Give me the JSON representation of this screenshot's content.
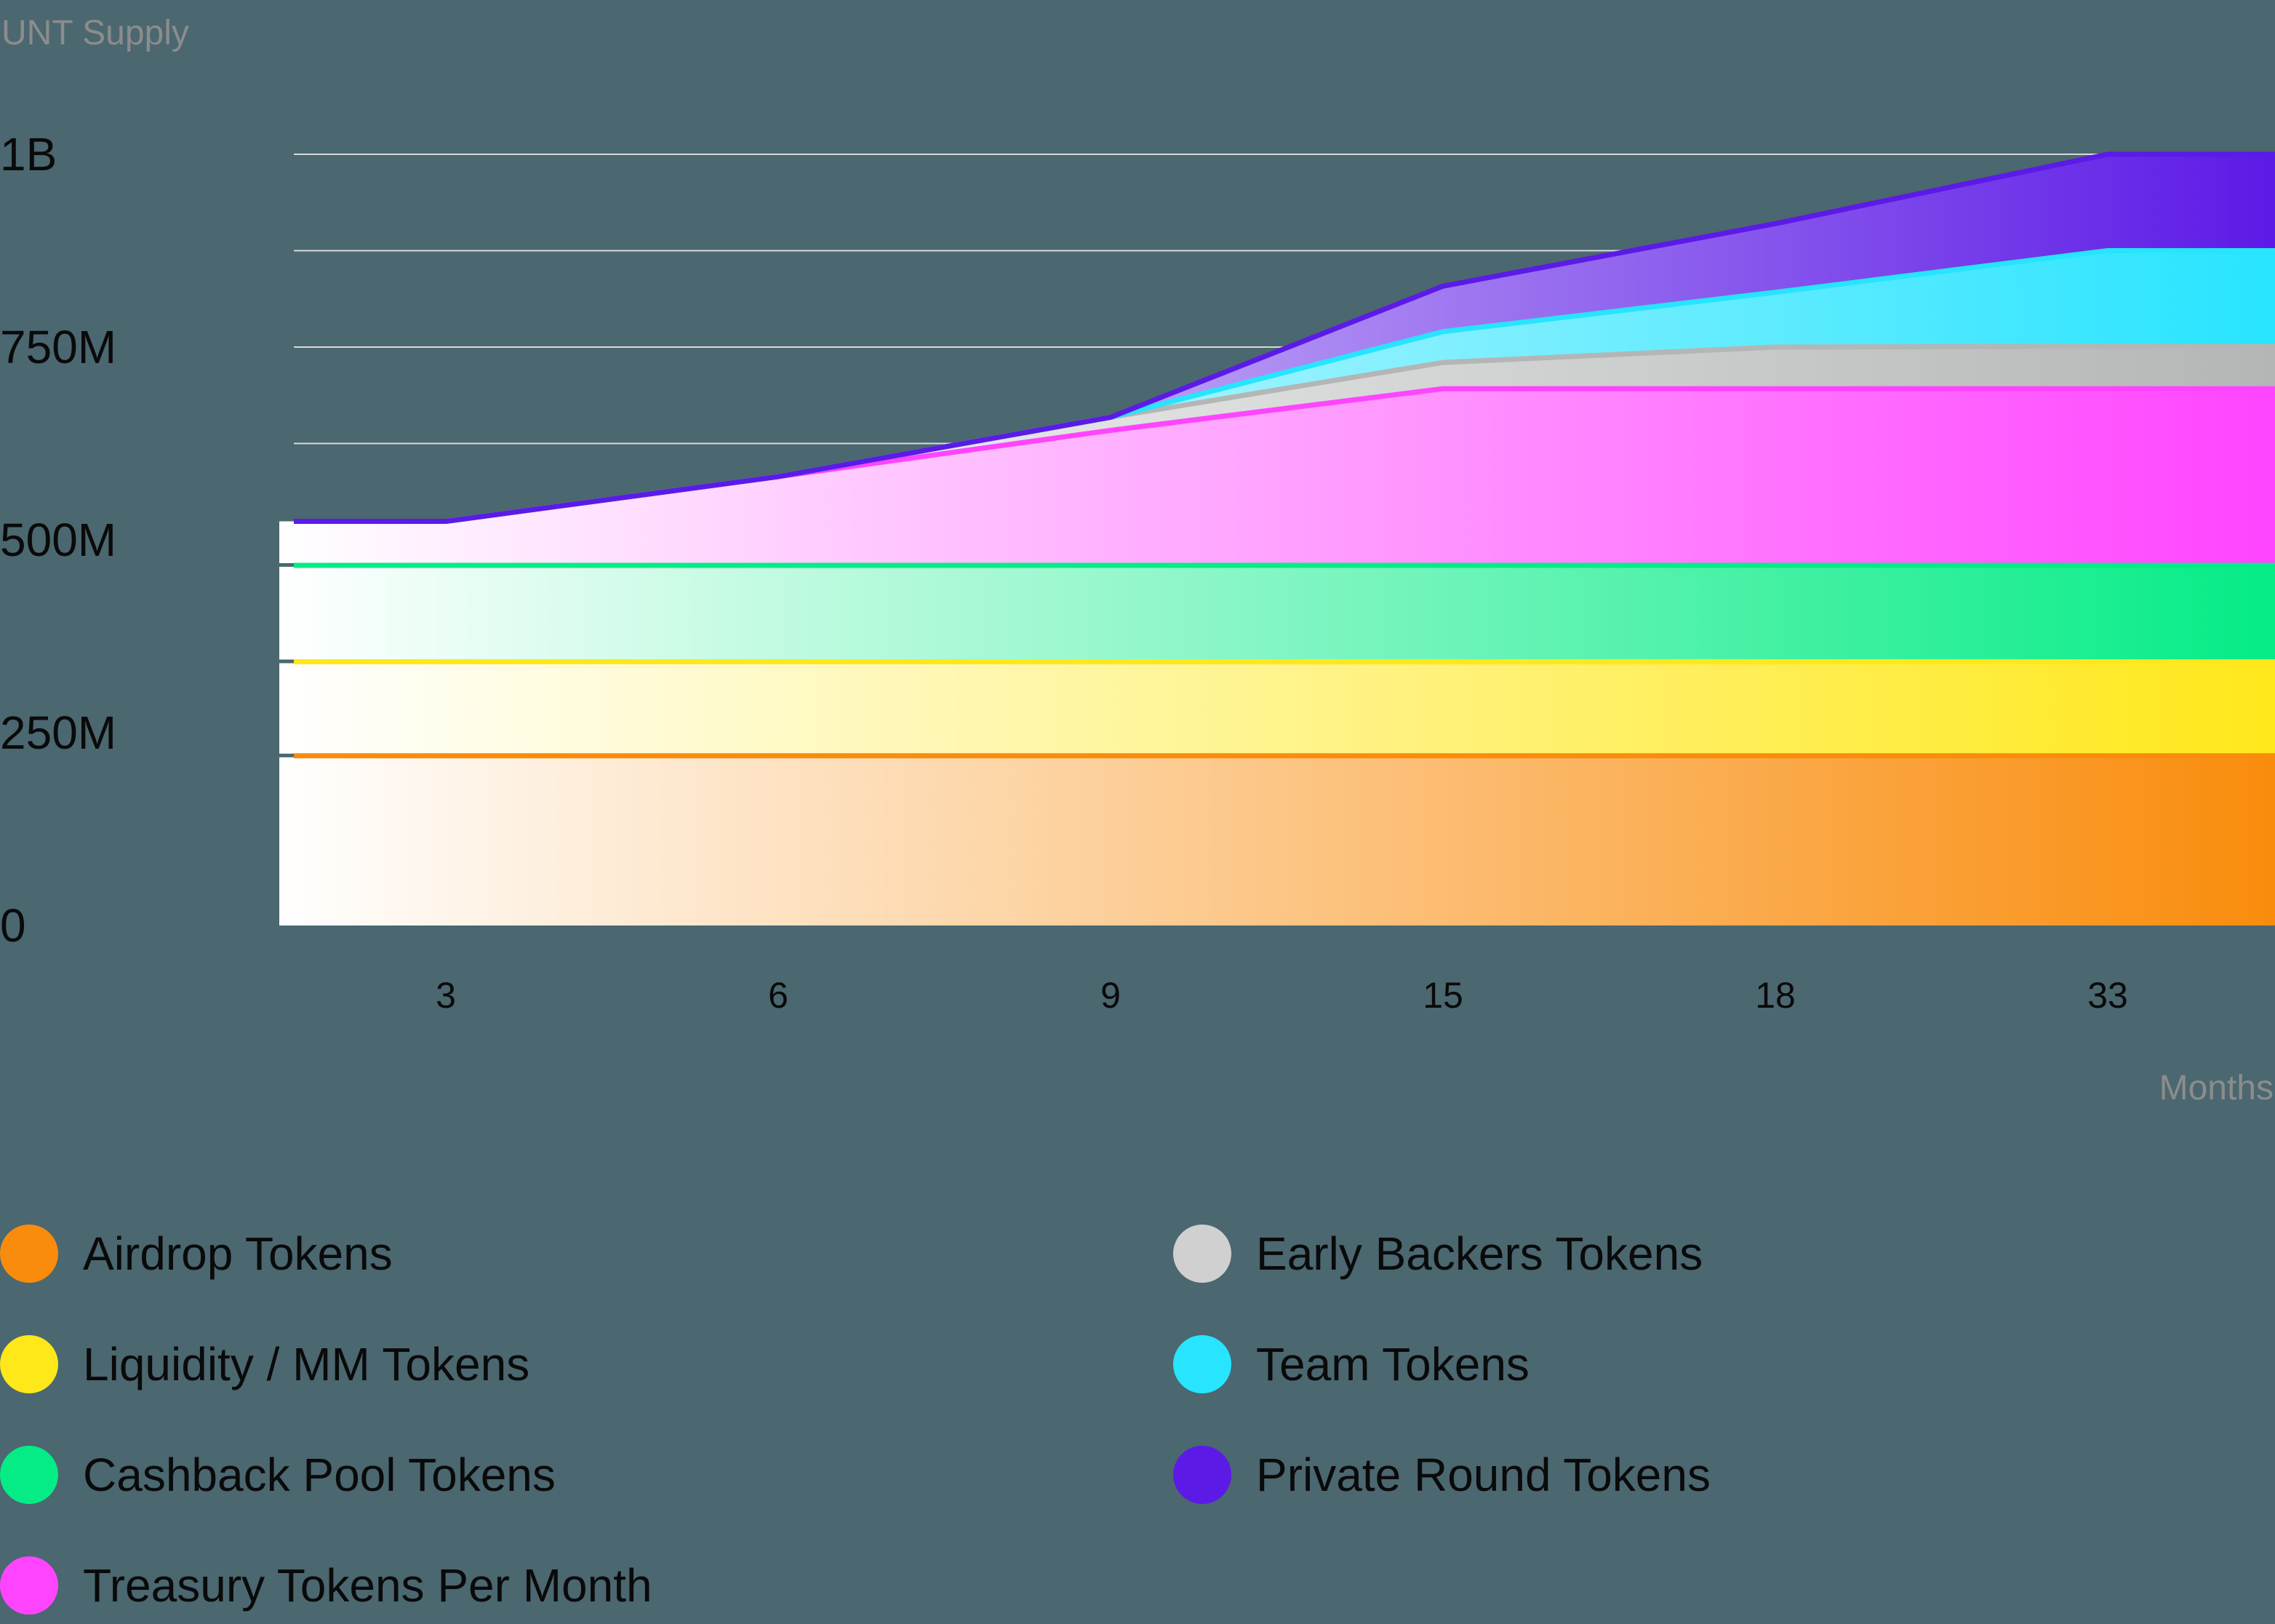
{
  "colors": {
    "background": "#4b6770",
    "gridline": "#d9d9d9",
    "axis_text": "#0a0a0a",
    "axis_title": "#8c8c8c"
  },
  "chart_data": {
    "type": "area",
    "stacked": true,
    "title": "",
    "ylabel": "UNT Supply",
    "xlabel": "Months",
    "ylim": [
      0,
      1000000000
    ],
    "y_ticks": [
      {
        "value": 0,
        "label": "0"
      },
      {
        "value": 250000000,
        "label": "250M"
      },
      {
        "value": 500000000,
        "label": "500M"
      },
      {
        "value": 750000000,
        "label": "750M"
      },
      {
        "value": 1000000000,
        "label": "1B"
      }
    ],
    "gridlines": [
      625000000,
      750000000,
      875000000,
      1000000000
    ],
    "categories": [
      "3",
      "6",
      "9",
      "15",
      "18",
      "33"
    ],
    "x_positions_note": "points indexed: start edge, 3, 6, 9, 15, 18, 33, right edge",
    "point_index": [
      -0.46,
      0,
      1,
      2,
      3,
      4,
      5,
      5.5
    ],
    "legend_position": "bottom",
    "series": [
      {
        "name": "Airdrop Tokens",
        "color": "#f98c0c",
        "values_m": [
          220,
          220,
          220,
          220,
          220,
          220,
          220,
          220
        ]
      },
      {
        "name": "Liquidity / MM Tokens",
        "color": "#ffe81a",
        "values_m": [
          122,
          122,
          122,
          122,
          122,
          122,
          122,
          122
        ]
      },
      {
        "name": "Cashback Pool Tokens",
        "color": "#05ec86",
        "values_m": [
          125,
          125,
          125,
          125,
          125,
          125,
          125,
          125
        ]
      },
      {
        "name": "Treasury Tokens Per Month",
        "color": "#ff44ff",
        "values_m": [
          57,
          57,
          115,
          175,
          229,
          229,
          229,
          229
        ]
      },
      {
        "name": "Early Backers Tokens",
        "color": "#b4b6b6",
        "values_m": [
          0,
          0,
          0,
          17,
          34,
          54,
          55,
          55
        ]
      },
      {
        "name": "Team Tokens",
        "color": "#27e4ff",
        "values_m": [
          0,
          0,
          0,
          0,
          40,
          71,
          124,
          124
        ]
      },
      {
        "name": "Private Round Tokens",
        "color": "#5c1ae6",
        "values_m": [
          0,
          0,
          0,
          0,
          59,
          89,
          125,
          125
        ]
      }
    ]
  },
  "axis": {
    "y_title": "UNT Supply",
    "x_title": "Months"
  },
  "legend": {
    "items": [
      {
        "label": "Airdrop Tokens",
        "color": "#f98c0c",
        "col": 0,
        "row": 0
      },
      {
        "label": "Liquidity / MM Tokens",
        "color": "#ffe81a",
        "col": 0,
        "row": 1
      },
      {
        "label": "Cashback Pool Tokens",
        "color": "#05ec86",
        "col": 0,
        "row": 2
      },
      {
        "label": "Treasury Tokens Per Month",
        "color": "#ff44ff",
        "col": 0,
        "row": 3
      },
      {
        "label": "Early Backers Tokens",
        "color": "#d0d0d0",
        "col": 1,
        "row": 0
      },
      {
        "label": "Team Tokens",
        "color": "#27e4ff",
        "col": 1,
        "row": 1
      },
      {
        "label": "Private Round Tokens",
        "color": "#5c1ae6",
        "col": 1,
        "row": 2
      }
    ]
  }
}
